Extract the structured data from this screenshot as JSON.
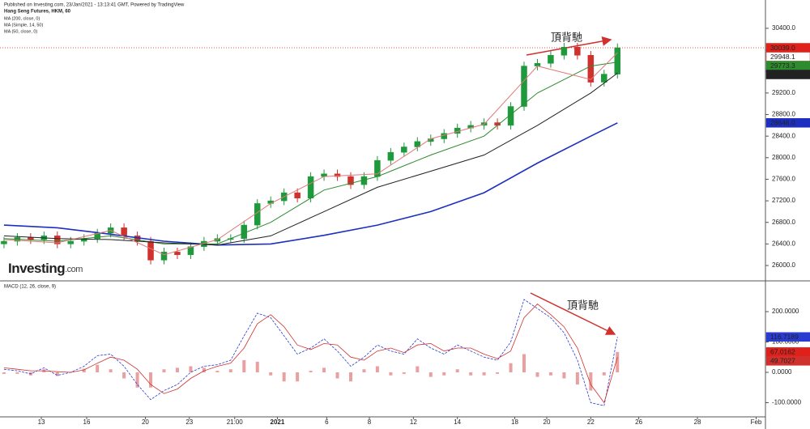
{
  "chart_data": [
    {
      "type": "candlestick",
      "subtitle": "Published on Investing.com, 23/Jan/2021 - 13:13:41 GMT, Powered by TradingView",
      "title": "Hang Seng Futures, HKM, 60",
      "logo": {
        "name": "Investing",
        "suffix": ".com"
      },
      "annotation": "頂背馳",
      "up_color": "#1e9a3c",
      "down_color": "#d0312d",
      "open": [
        26400,
        26450,
        26520,
        26480,
        26550,
        26400,
        26450,
        26500,
        26600,
        26700,
        26550,
        26450,
        26100,
        26250,
        26200,
        26350,
        26450,
        26500,
        26500,
        26750,
        27150,
        27200,
        27350,
        27250,
        27650,
        27700,
        27650,
        27500,
        27650,
        27950,
        28100,
        28200,
        28300,
        28350,
        28450,
        28550,
        28600,
        28650,
        28600,
        28950,
        29700,
        29750,
        29900,
        30050,
        29900,
        29400,
        29550
      ],
      "high": [
        26530,
        26600,
        26600,
        26630,
        26630,
        26530,
        26580,
        26680,
        26780,
        26780,
        26630,
        26530,
        26330,
        26330,
        26430,
        26530,
        26580,
        26580,
        26830,
        27230,
        27280,
        27430,
        27430,
        27730,
        27780,
        27780,
        27730,
        27730,
        28030,
        28180,
        28280,
        28380,
        28430,
        28530,
        28630,
        28680,
        28730,
        28730,
        29030,
        29780,
        29830,
        29980,
        30130,
        30130,
        29980,
        29630,
        30119
      ],
      "low": [
        26320,
        26370,
        26400,
        26400,
        26320,
        26320,
        26370,
        26420,
        26520,
        26470,
        26370,
        26020,
        26020,
        26120,
        26120,
        26270,
        26370,
        26420,
        26420,
        26670,
        27070,
        27120,
        27170,
        27170,
        27570,
        27570,
        27420,
        27420,
        27570,
        27870,
        28020,
        28120,
        28220,
        28270,
        28370,
        28470,
        28520,
        28520,
        28520,
        28870,
        29620,
        29670,
        29820,
        29820,
        29320,
        29320,
        29470
      ],
      "close": [
        26450,
        26520,
        26480,
        26550,
        26400,
        26450,
        26500,
        26600,
        26700,
        26550,
        26450,
        26100,
        26250,
        26200,
        26350,
        26450,
        26500,
        26500,
        26750,
        27150,
        27200,
        27350,
        27250,
        27650,
        27700,
        27650,
        27500,
        27650,
        27950,
        28100,
        28200,
        28300,
        28350,
        28450,
        28550,
        28600,
        28650,
        28600,
        28950,
        29700,
        29750,
        29900,
        30050,
        29900,
        29400,
        29550,
        30039
      ],
      "close_label": "30039.0",
      "close_color": "#e0201b",
      "series": [
        {
          "name": "MA (200, close, 0)",
          "color": "#1c2fbf",
          "x": [
            0,
            4,
            8,
            12,
            16,
            20,
            24,
            28,
            32,
            36,
            40,
            44,
            46
          ],
          "values": [
            26750,
            26700,
            26580,
            26450,
            26380,
            26400,
            26560,
            26750,
            27000,
            27350,
            27900,
            28400,
            28646
          ],
          "last_label": "28646.0"
        },
        {
          "name": "MA (Simple, 14, 50)",
          "color": "#2e8b2e",
          "x": [
            0,
            4,
            8,
            12,
            16,
            20,
            24,
            28,
            32,
            36,
            40,
            44,
            46
          ],
          "values": [
            26500,
            26450,
            26550,
            26400,
            26400,
            26800,
            27400,
            27650,
            28050,
            28400,
            29200,
            29700,
            29773.3
          ],
          "last_label": "29773.3"
        },
        {
          "name": "MA (50, close, 0)",
          "color": "#222222",
          "x": [
            0,
            4,
            8,
            12,
            16,
            20,
            24,
            28,
            32,
            36,
            40,
            44,
            46
          ],
          "values": [
            26550,
            26500,
            26480,
            26420,
            26380,
            26550,
            27000,
            27450,
            27750,
            28050,
            28600,
            29200,
            29568.1
          ],
          "last_label": "29568.1"
        },
        {
          "color": "#e07a7a",
          "x": [
            0,
            4,
            8,
            12,
            16,
            20,
            24,
            28,
            32,
            36,
            40,
            44,
            46
          ],
          "values": [
            26480,
            26420,
            26650,
            26200,
            26480,
            27150,
            27650,
            27700,
            28350,
            28620,
            29700,
            29450,
            29948.1
          ],
          "last_label": "29948.1"
        }
      ],
      "xlim": [
        -0.3,
        57.1
      ],
      "ylim": [
        25745,
        30925
      ],
      "yticks": [
        {
          "value": 26000,
          "label": "26000.0"
        },
        {
          "value": 26400,
          "label": "26400.0"
        },
        {
          "value": 26800,
          "label": "26800.0"
        },
        {
          "value": 27200,
          "label": "27200.0"
        },
        {
          "value": 27600,
          "label": "27600.0"
        },
        {
          "value": 28000,
          "label": "28000.0"
        },
        {
          "value": 28400,
          "label": "28400.0"
        },
        {
          "value": 28800,
          "label": "28800.0"
        },
        {
          "value": 29200,
          "label": "29200.0"
        },
        {
          "value": 29600,
          "label": "29600.0"
        },
        {
          "value": 30000,
          "label": "30000.0"
        },
        {
          "value": 30400,
          "label": "30400.0"
        }
      ]
    },
    {
      "type": "macd",
      "title": "MACD (12, 26, close, 9)",
      "annotation": "頂背馳",
      "series": [
        {
          "name": "MACD",
          "color": "#2a3bd0",
          "values": [
            10,
            5,
            -5,
            15,
            -10,
            0,
            20,
            55,
            60,
            20,
            -40,
            -90,
            -60,
            -40,
            0,
            20,
            25,
            40,
            120,
            195,
            180,
            120,
            60,
            80,
            110,
            70,
            20,
            50,
            90,
            70,
            60,
            110,
            80,
            60,
            90,
            70,
            50,
            40,
            100,
            240,
            210,
            180,
            130,
            40,
            -100,
            -110,
            116.7189
          ]
        },
        {
          "name": "Signal",
          "color": "#d0312d",
          "values": [
            15,
            10,
            5,
            5,
            2,
            0,
            8,
            30,
            50,
            40,
            10,
            -40,
            -70,
            -55,
            -20,
            5,
            20,
            30,
            80,
            160,
            190,
            150,
            90,
            75,
            95,
            90,
            50,
            40,
            70,
            80,
            65,
            90,
            95,
            70,
            80,
            80,
            60,
            45,
            70,
            180,
            225,
            190,
            150,
            80,
            -40,
            -100,
            49.7027
          ]
        },
        {
          "name": "Histogram",
          "color": "#e8a0a0",
          "label_color": "#e0201b",
          "values": [
            -5,
            -5,
            -10,
            10,
            -12,
            0,
            12,
            25,
            10,
            -20,
            -50,
            -50,
            10,
            15,
            20,
            15,
            5,
            10,
            40,
            35,
            -10,
            -30,
            -30,
            5,
            15,
            -20,
            -30,
            10,
            20,
            -10,
            -5,
            20,
            -15,
            -10,
            10,
            -10,
            -10,
            -5,
            30,
            60,
            -15,
            -10,
            -20,
            -40,
            -60,
            -10,
            67.0162
          ]
        }
      ],
      "xlim": [
        -0.3,
        57.1
      ],
      "ylim": [
        -146.7,
        293.3
      ],
      "yticks": [
        {
          "value": -100,
          "label": "-100.0000"
        },
        {
          "value": 0,
          "label": "0.0000"
        },
        {
          "value": 100,
          "label": "100.0000"
        },
        {
          "value": 200,
          "label": "200.0000"
        }
      ],
      "xticks": [
        {
          "value": 2.8,
          "label": "13"
        },
        {
          "value": 6.2,
          "label": "16"
        },
        {
          "value": 10.6,
          "label": "20"
        },
        {
          "value": 13.9,
          "label": "23"
        },
        {
          "value": 17.3,
          "label": "21:00"
        },
        {
          "value": 20.5,
          "label": "2021"
        },
        {
          "value": 24.2,
          "label": "6"
        },
        {
          "value": 27.4,
          "label": "8"
        },
        {
          "value": 30.7,
          "label": "12"
        },
        {
          "value": 34,
          "label": "14"
        },
        {
          "value": 38.3,
          "label": "18"
        },
        {
          "value": 40.7,
          "label": "20"
        },
        {
          "value": 44,
          "label": "22"
        },
        {
          "value": 47.6,
          "label": "26"
        },
        {
          "value": 52,
          "label": "28"
        },
        {
          "value": 56.4,
          "label": "Feb"
        }
      ]
    }
  ]
}
